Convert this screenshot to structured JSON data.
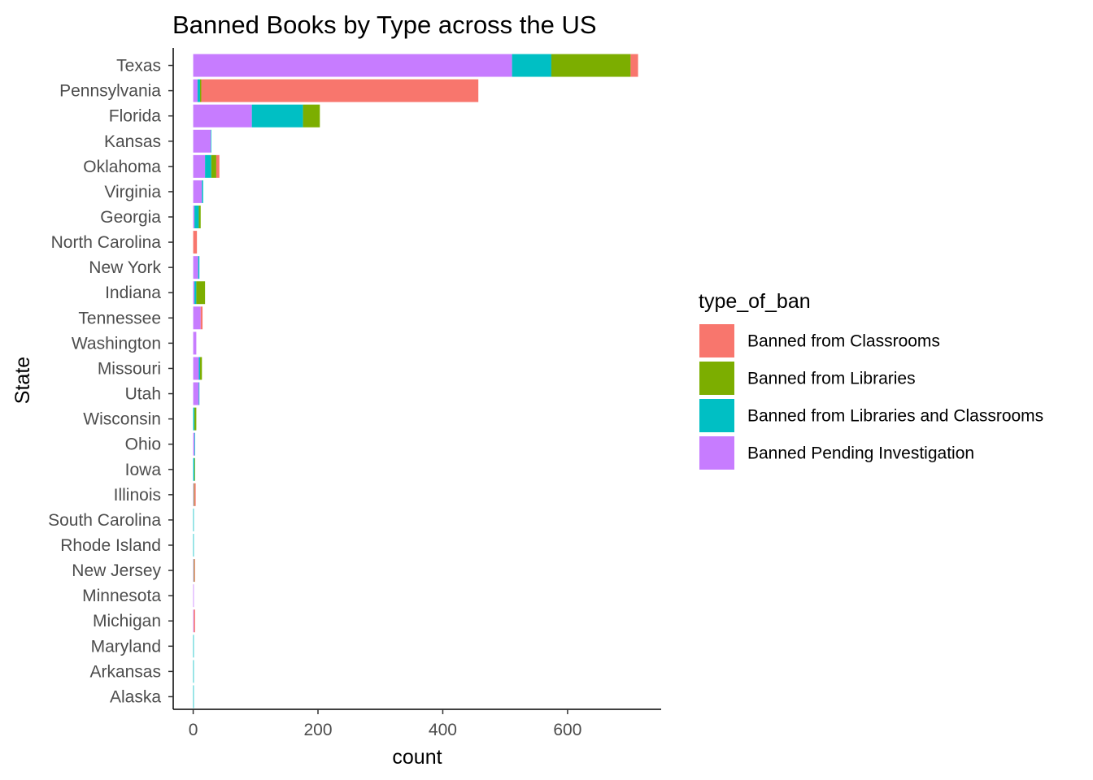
{
  "chart_data": {
    "type": "bar",
    "orientation": "horizontal",
    "stacked": true,
    "title": "Banned Books by Type across the US",
    "xlabel": "count",
    "ylabel": "State",
    "xlim": [
      -32,
      750
    ],
    "xticks": [
      0,
      200,
      400,
      600
    ],
    "grid": false,
    "legend_position": "right",
    "legend_title": "type_of_ban",
    "categories": [
      "Texas",
      "Pennsylvania",
      "Florida",
      "Kansas",
      "Oklahoma",
      "Virginia",
      "Georgia",
      "North Carolina",
      "New York",
      "Indiana",
      "Tennessee",
      "Washington",
      "Missouri",
      "Utah",
      "Wisconsin",
      "Ohio",
      "Iowa",
      "Illinois",
      "South Carolina",
      "Rhode Island",
      "New Jersey",
      "Minnesota",
      "Michigan",
      "Maryland",
      "Arkansas",
      "Alaska"
    ],
    "stack_order": [
      "Banned Pending Investigation",
      "Banned from Libraries and Classrooms",
      "Banned from Libraries",
      "Banned from Classrooms"
    ],
    "series": [
      {
        "name": "Banned from Classrooms",
        "color": "#F8766D",
        "values": [
          12,
          444,
          0,
          0,
          5,
          0,
          0,
          6,
          0,
          0,
          3,
          0,
          0,
          0,
          0,
          0,
          0,
          2,
          0,
          0,
          1,
          0,
          2,
          0,
          0,
          0
        ]
      },
      {
        "name": "Banned from Libraries",
        "color": "#7CAE00",
        "values": [
          127,
          2,
          27,
          0,
          8,
          0,
          3,
          0,
          0,
          14,
          0,
          0,
          3,
          0,
          3,
          0,
          1,
          1,
          0,
          0,
          1,
          0,
          0,
          0,
          0,
          0
        ]
      },
      {
        "name": "Banned from Libraries and Classrooms",
        "color": "#00BFC4",
        "values": [
          63,
          4,
          82,
          1,
          10,
          2,
          7,
          0,
          2,
          3,
          0,
          0,
          2,
          1,
          2,
          1,
          2,
          0,
          1,
          1,
          0,
          0,
          0,
          1,
          1,
          1
        ]
      },
      {
        "name": "Banned Pending Investigation",
        "color": "#C77CFF",
        "values": [
          511,
          7,
          94,
          28,
          19,
          14,
          2,
          0,
          8,
          2,
          12,
          5,
          9,
          9,
          0,
          2,
          0,
          1,
          0,
          0,
          1,
          1,
          1,
          0,
          0,
          0
        ]
      }
    ]
  }
}
